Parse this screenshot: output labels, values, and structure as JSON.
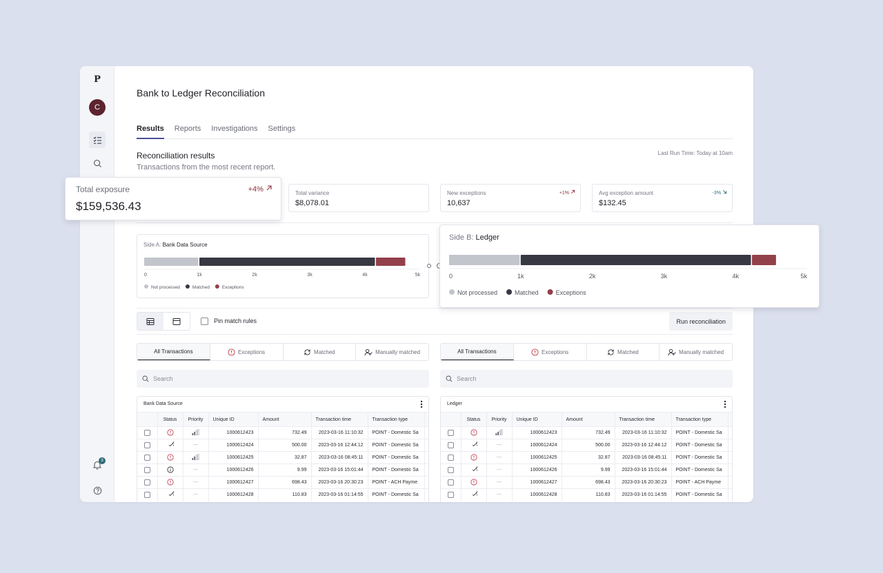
{
  "app": {
    "logo": "P",
    "avatar_initial": "C",
    "notification_count": "3"
  },
  "page": {
    "title": "Bank to Ledger Reconciliation"
  },
  "tabs": [
    {
      "label": "Results",
      "active": true
    },
    {
      "label": "Reports",
      "active": false
    },
    {
      "label": "Investigations",
      "active": false
    },
    {
      "label": "Settings",
      "active": false
    }
  ],
  "section": {
    "title": "Reconciliation results",
    "subtitle": "Transactions from the most recent report.",
    "last_run": "Last Run Time: Today at 10am"
  },
  "metrics": {
    "exposure": {
      "label": "Total exposure",
      "value": "$159,536.43",
      "change": "+4%",
      "trend": "up"
    },
    "variance": {
      "label": "Total variance",
      "value": "$8,078.01"
    },
    "new_exceptions": {
      "label": "New exceptions",
      "value": "10,637",
      "change": "+1%",
      "trend": "up"
    },
    "avg_exception": {
      "label": "Avg exception amount",
      "value": "$132.45",
      "change": "-3%",
      "trend": "down"
    }
  },
  "colors": {
    "not_processed": "#c3c5cc",
    "matched": "#383843",
    "exceptions": "#93404b",
    "positive_change": "#8b2f3c",
    "negative_change": "#2f6b78",
    "accent": "#4a4f99"
  },
  "chart_data": [
    {
      "type": "bar",
      "title_prefix": "Side A:",
      "title": "Bank Data Source",
      "orientation": "horizontal-stacked",
      "series": [
        {
          "name": "Not processed",
          "value": 1000
        },
        {
          "name": "Matched",
          "value": 3200
        },
        {
          "name": "Exceptions",
          "value": 550
        }
      ],
      "xlim": [
        0,
        5000
      ],
      "ticks": [
        "0",
        "1k",
        "2k",
        "3k",
        "4k",
        "5k"
      ],
      "legend": "bottom-left"
    },
    {
      "type": "bar",
      "title_prefix": "Side B:",
      "title": "Ledger",
      "orientation": "horizontal-stacked",
      "series": [
        {
          "name": "Not processed",
          "value": 1000
        },
        {
          "name": "Matched",
          "value": 3230
        },
        {
          "name": "Exceptions",
          "value": 350
        }
      ],
      "xlim": [
        0,
        5000
      ],
      "ticks": [
        "0",
        "1k",
        "2k",
        "3k",
        "4k",
        "5k"
      ],
      "legend": "bottom-left"
    }
  ],
  "controls": {
    "pin_label": "Pin match rules",
    "run_label": "Run reconciliation"
  },
  "filter_tabs": [
    {
      "label": "All Transactions",
      "icon": "none",
      "active": true
    },
    {
      "label": "Exceptions",
      "icon": "alert-icon"
    },
    {
      "label": "Matched",
      "icon": "sync-icon"
    },
    {
      "label": "Manually matched",
      "icon": "user-check-icon"
    }
  ],
  "search": {
    "placeholder": "Search"
  },
  "tables": [
    {
      "title": "Bank Data Source"
    },
    {
      "title": "Ledger"
    }
  ],
  "columns": [
    "Status",
    "Priority",
    "Unique ID",
    "Amount",
    "Transaction time",
    "Transaction type"
  ],
  "rows_a": [
    {
      "status": "exception",
      "priority": "bars",
      "id": "1000612423",
      "amount": "732.49",
      "time": "2023-03-16 11:10:32",
      "type": "POINT - Domestic Sa"
    },
    {
      "status": "matched",
      "priority": "---",
      "id": "1000612424",
      "amount": "500.00",
      "time": "2023-03-16 12:44:12",
      "type": "POINT - Domestic Sa"
    },
    {
      "status": "exception",
      "priority": "bars",
      "id": "1000612425",
      "amount": "32.87",
      "time": "2023-03-16 08:45:11",
      "type": "POINT - Domestic Sa"
    },
    {
      "status": "info",
      "priority": "---",
      "id": "1000612426",
      "amount": "9.99",
      "time": "2023-03-16 15:01:44",
      "type": "POINT - Domestic Sa"
    },
    {
      "status": "exception",
      "priority": "---",
      "id": "1000612427",
      "amount": "698.43",
      "time": "2023-03-16 20:30:23",
      "type": "POINT - ACH Payme"
    },
    {
      "status": "matched",
      "priority": "---",
      "id": "1000612428",
      "amount": "110.83",
      "time": "2023-03-16 01:14:55",
      "type": "POINT - Domestic Sa"
    }
  ],
  "rows_b": [
    {
      "status": "exception",
      "priority": "bars",
      "id": "1000612423",
      "amount": "732.49",
      "time": "2023-03-16 11:10:32",
      "type": "POINT - Domestic Sa"
    },
    {
      "status": "matched",
      "priority": "---",
      "id": "1000612424",
      "amount": "500.00",
      "time": "2023-03-16 12:44:12",
      "type": "POINT - Domestic Sa"
    },
    {
      "status": "exception",
      "priority": "---",
      "id": "1000612425",
      "amount": "32.87",
      "time": "2023-03-16 08:45:11",
      "type": "POINT - Domestic Sa"
    },
    {
      "status": "matched",
      "priority": "---",
      "id": "1000612426",
      "amount": "9.99",
      "time": "2023-03-16 15:01:44",
      "type": "POINT - Domestic Sa"
    },
    {
      "status": "exception",
      "priority": "---",
      "id": "1000612427",
      "amount": "698.43",
      "time": "2023-03-16 20:30:23",
      "type": "POINT - ACH Payme"
    },
    {
      "status": "matched",
      "priority": "---",
      "id": "1000612428",
      "amount": "110.83",
      "time": "2023-03-16 01:14:55",
      "type": "POINT - Domestic Sa"
    }
  ]
}
